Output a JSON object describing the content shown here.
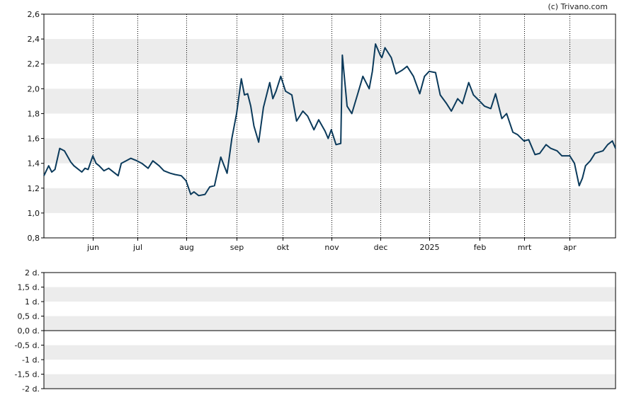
{
  "credit": "(c) Trivano.com",
  "colors": {
    "line": "#0b3a5b",
    "band": "#ececec",
    "axis": "#000000",
    "grid": "#000000"
  },
  "chart_data": [
    {
      "type": "line",
      "title": "",
      "xlabel": "",
      "ylabel": "",
      "ylim": [
        0.8,
        2.6
      ],
      "yticks": [
        "2,6",
        "2,4",
        "2,2",
        "2,0",
        "1,8",
        "1,6",
        "1,4",
        "1,2",
        "1,0",
        "0,8"
      ],
      "ytick_values": [
        2.6,
        2.4,
        2.2,
        2.0,
        1.8,
        1.6,
        1.4,
        1.2,
        1.0,
        0.8
      ],
      "xlim": [
        "2024-05-03",
        "2025-04-30"
      ],
      "xticks": [
        "jun",
        "jul",
        "aug",
        "sep",
        "okt",
        "nov",
        "dec",
        "2025",
        "feb",
        "mrt",
        "apr"
      ],
      "xtick_dates": [
        "2024-06-03",
        "2024-07-01",
        "2024-08-01",
        "2024-09-02",
        "2024-10-01",
        "2024-11-01",
        "2024-12-02",
        "2025-01-02",
        "2025-02-03",
        "2025-03-03",
        "2025-04-01"
      ],
      "grid": "vertical dotted at month ticks, alternating horizontal bands",
      "series": [
        {
          "x": [
            "2024-05-03",
            "2024-05-06",
            "2024-05-08",
            "2024-05-10",
            "2024-05-13",
            "2024-05-16",
            "2024-05-20",
            "2024-05-22",
            "2024-05-24",
            "2024-05-27",
            "2024-05-29",
            "2024-05-31",
            "2024-06-03",
            "2024-06-05",
            "2024-06-07",
            "2024-06-10",
            "2024-06-13",
            "2024-06-17",
            "2024-06-19",
            "2024-06-21",
            "2024-06-24",
            "2024-06-27",
            "2024-07-01",
            "2024-07-04",
            "2024-07-08",
            "2024-07-11",
            "2024-07-15",
            "2024-07-18",
            "2024-07-22",
            "2024-07-25",
            "2024-07-29",
            "2024-08-01",
            "2024-08-04",
            "2024-08-06",
            "2024-08-09",
            "2024-08-13",
            "2024-08-16",
            "2024-08-19",
            "2024-08-23",
            "2024-08-27",
            "2024-08-30",
            "2024-09-02",
            "2024-09-05",
            "2024-09-07",
            "2024-09-09",
            "2024-09-11",
            "2024-09-13",
            "2024-09-16",
            "2024-09-19",
            "2024-09-23",
            "2024-09-25",
            "2024-09-27",
            "2024-09-30",
            "2024-10-03",
            "2024-10-07",
            "2024-10-10",
            "2024-10-14",
            "2024-10-17",
            "2024-10-21",
            "2024-10-24",
            "2024-10-28",
            "2024-10-30",
            "2024-11-01",
            "2024-11-04",
            "2024-11-07",
            "2024-11-08",
            "2024-11-11",
            "2024-11-14",
            "2024-11-18",
            "2024-11-21",
            "2024-11-25",
            "2024-11-27",
            "2024-11-29",
            "2024-12-02",
            "2024-12-03",
            "2024-12-05",
            "2024-12-09",
            "2024-12-12",
            "2024-12-16",
            "2024-12-19",
            "2024-12-23",
            "2024-12-27",
            "2024-12-30",
            "2025-01-02",
            "2025-01-06",
            "2025-01-09",
            "2025-01-13",
            "2025-01-16",
            "2025-01-20",
            "2025-01-23",
            "2025-01-27",
            "2025-01-30",
            "2025-02-03",
            "2025-02-06",
            "2025-02-10",
            "2025-02-13",
            "2025-02-17",
            "2025-02-20",
            "2025-02-24",
            "2025-02-27",
            "2025-03-03",
            "2025-03-06",
            "2025-03-10",
            "2025-03-13",
            "2025-03-17",
            "2025-03-20",
            "2025-03-24",
            "2025-03-27",
            "2025-04-01",
            "2025-04-04",
            "2025-04-07",
            "2025-04-09",
            "2025-04-11",
            "2025-04-14",
            "2025-04-17",
            "2025-04-22",
            "2025-04-25",
            "2025-04-28",
            "2025-04-30"
          ],
          "values": [
            1.3,
            1.38,
            1.33,
            1.35,
            1.52,
            1.5,
            1.41,
            1.38,
            1.36,
            1.33,
            1.36,
            1.35,
            1.46,
            1.4,
            1.38,
            1.34,
            1.36,
            1.32,
            1.3,
            1.4,
            1.42,
            1.44,
            1.42,
            1.4,
            1.36,
            1.42,
            1.38,
            1.34,
            1.32,
            1.31,
            1.3,
            1.26,
            1.15,
            1.17,
            1.14,
            1.15,
            1.21,
            1.22,
            1.45,
            1.32,
            1.6,
            1.8,
            2.08,
            1.95,
            1.96,
            1.86,
            1.7,
            1.57,
            1.85,
            2.05,
            1.92,
            1.98,
            2.1,
            1.98,
            1.95,
            1.74,
            1.82,
            1.78,
            1.67,
            1.75,
            1.66,
            1.6,
            1.67,
            1.55,
            1.56,
            2.27,
            1.86,
            1.8,
            1.97,
            2.1,
            2.0,
            2.14,
            2.36,
            2.27,
            2.25,
            2.33,
            2.25,
            2.12,
            2.15,
            2.18,
            2.1,
            1.96,
            2.1,
            2.14,
            2.13,
            1.95,
            1.88,
            1.82,
            1.92,
            1.88,
            2.05,
            1.95,
            1.9,
            1.86,
            1.84,
            1.96,
            1.76,
            1.8,
            1.65,
            1.63,
            1.58,
            1.59,
            1.47,
            1.48,
            1.55,
            1.52,
            1.5,
            1.46,
            1.46,
            1.4,
            1.22,
            1.28,
            1.38,
            1.42,
            1.48,
            1.5,
            1.55,
            1.58,
            1.52
          ]
        }
      ]
    },
    {
      "type": "line",
      "title": "",
      "xlabel": "",
      "ylabel": "",
      "ylim": [
        -2,
        2
      ],
      "yticks": [
        "2 d.",
        "1,5 d.",
        "1 d.",
        "0,5 d.",
        "0,0 d.",
        "-0,5 d.",
        "-1 d.",
        "-1,5 d.",
        "-2 d."
      ],
      "ytick_values": [
        2,
        1.5,
        1,
        0.5,
        0,
        -0.5,
        -1,
        -1.5,
        -2
      ],
      "baseline": 0,
      "series": []
    }
  ]
}
